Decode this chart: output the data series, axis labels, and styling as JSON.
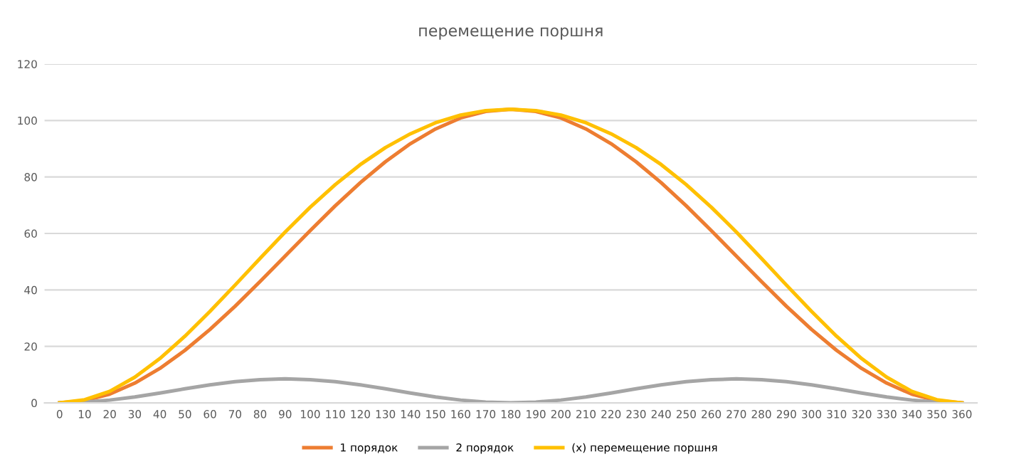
{
  "chart_data": {
    "type": "line",
    "title": "перемещение поршня",
    "categories": [
      "0",
      "10",
      "20",
      "30",
      "40",
      "50",
      "60",
      "70",
      "80",
      "90",
      "100",
      "110",
      "120",
      "130",
      "140",
      "150",
      "160",
      "170",
      "180",
      "190",
      "200",
      "210",
      "220",
      "230",
      "240",
      "250",
      "260",
      "270",
      "280",
      "290",
      "300",
      "310",
      "320",
      "330",
      "340",
      "350",
      "360"
    ],
    "series": [
      {
        "name": "1 порядок",
        "color": "#ed7d31",
        "values": [
          0,
          0.8,
          3.1,
          7.0,
          12.2,
          18.6,
          26.0,
          34.2,
          43.0,
          52.0,
          61.0,
          69.8,
          78.0,
          85.4,
          91.8,
          97.0,
          100.9,
          103.2,
          104.0,
          103.2,
          100.9,
          97.0,
          91.8,
          85.4,
          78.0,
          69.8,
          61.0,
          52.0,
          43.0,
          34.2,
          26.0,
          18.6,
          12.2,
          7.0,
          3.1,
          0.8,
          0
        ]
      },
      {
        "name": "2 порядок",
        "color": "#a5a5a5",
        "values": [
          0,
          0.3,
          1.0,
          2.1,
          3.5,
          5.0,
          6.4,
          7.5,
          8.2,
          8.5,
          8.2,
          7.5,
          6.4,
          5.0,
          3.5,
          2.1,
          1.0,
          0.3,
          0,
          0.3,
          1.0,
          2.1,
          3.5,
          5.0,
          6.4,
          7.5,
          8.2,
          8.5,
          8.2,
          7.5,
          6.4,
          5.0,
          3.5,
          2.1,
          1.0,
          0.3,
          0
        ]
      },
      {
        "name": "(x) перемещение поршня",
        "color": "#ffc000",
        "values": [
          0,
          1.1,
          4.1,
          9.1,
          15.7,
          23.6,
          32.4,
          41.7,
          51.2,
          60.5,
          69.3,
          77.3,
          84.4,
          90.4,
          95.3,
          99.2,
          101.9,
          103.5,
          104.0,
          103.5,
          101.9,
          99.2,
          95.3,
          90.4,
          84.4,
          77.3,
          69.3,
          60.5,
          51.2,
          41.7,
          32.4,
          23.6,
          15.7,
          9.1,
          4.1,
          1.1,
          0
        ]
      }
    ],
    "ylim": [
      0,
      120
    ],
    "yticks": [
      0,
      20,
      40,
      60,
      80,
      100,
      120
    ],
    "grid": "y",
    "legend": "bottom",
    "marker": "none",
    "line_style": "solid"
  }
}
